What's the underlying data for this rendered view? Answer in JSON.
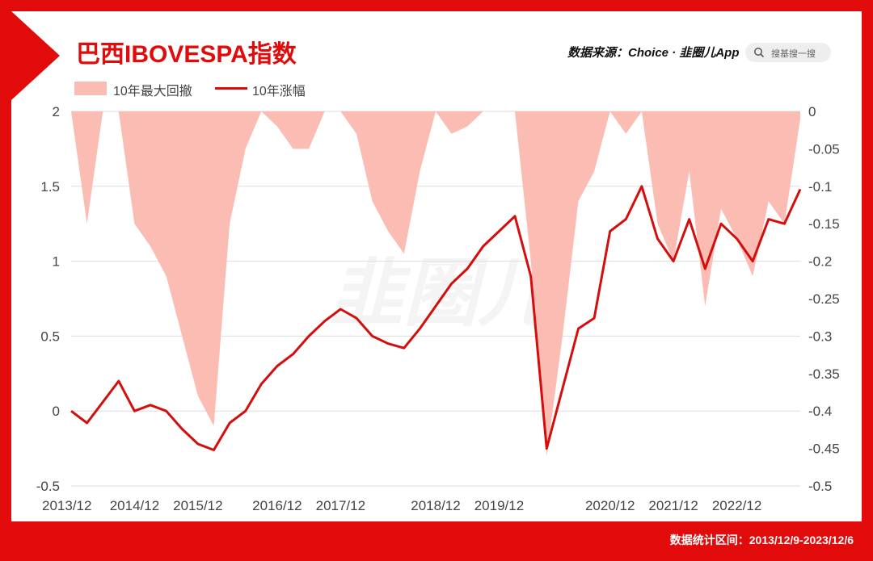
{
  "header": {
    "title": "巴西IBOVESPA指数",
    "source": "数据来源：Choice · 韭圈儿App",
    "search_placeholder": "搜基搜一搜"
  },
  "footer": {
    "range_text": "数据统计区间：2013/12/9-2023/12/6"
  },
  "watermark": "韭圈儿",
  "colors": {
    "frame": "#e10b0b",
    "drawdown_fill": "#fbbcb4",
    "gain_line": "#d40d0d",
    "grid": "#dddddd"
  },
  "chart_data": {
    "type": "line",
    "title": "巴西IBOVESPA指数",
    "legend_position": "top-left",
    "grid": true,
    "x": [
      "2013/12",
      "2014/03",
      "2014/06",
      "2014/09",
      "2014/12",
      "2015/03",
      "2015/06",
      "2015/09",
      "2015/12",
      "2016/01",
      "2016/03",
      "2016/06",
      "2016/09",
      "2016/12",
      "2017/03",
      "2017/06",
      "2017/09",
      "2017/12",
      "2018/01",
      "2018/03",
      "2018/05",
      "2018/06",
      "2018/09",
      "2018/12",
      "2019/03",
      "2019/06",
      "2019/09",
      "2019/12",
      "2020/01",
      "2020/02",
      "2020/03",
      "2020/04",
      "2020/06",
      "2020/09",
      "2020/12",
      "2021/03",
      "2021/06",
      "2021/09",
      "2021/12",
      "2022/03",
      "2022/06",
      "2022/09",
      "2022/12",
      "2023/03",
      "2023/06",
      "2023/09",
      "2023/12"
    ],
    "x_ticks": [
      "2013/12",
      "2014/12",
      "2015/12",
      "2016/12",
      "2017/12",
      "2018/12",
      "2019/12",
      "2020/12",
      "2021/12",
      "2022/12"
    ],
    "series": [
      {
        "name": "10年涨幅",
        "axis": "left",
        "values": [
          0.0,
          -0.08,
          0.06,
          0.2,
          0.0,
          0.04,
          0.0,
          -0.12,
          -0.22,
          -0.26,
          -0.08,
          0.0,
          0.18,
          0.3,
          0.38,
          0.5,
          0.6,
          0.68,
          0.62,
          0.5,
          0.45,
          0.42,
          0.55,
          0.7,
          0.85,
          0.95,
          1.1,
          1.2,
          1.3,
          0.9,
          -0.25,
          0.15,
          0.55,
          0.62,
          1.2,
          1.28,
          1.5,
          1.15,
          1.0,
          1.28,
          0.95,
          1.25,
          1.15,
          1.0,
          1.28,
          1.25,
          1.48
        ]
      },
      {
        "name": "10年最大回撤",
        "axis": "right",
        "values": [
          0.0,
          -0.15,
          0.0,
          0.0,
          -0.15,
          -0.18,
          -0.22,
          -0.3,
          -0.38,
          -0.42,
          -0.15,
          -0.05,
          0.0,
          -0.02,
          -0.05,
          -0.05,
          0.0,
          0.0,
          -0.03,
          -0.12,
          -0.16,
          -0.19,
          -0.08,
          0.0,
          -0.03,
          -0.02,
          0.0,
          0.0,
          0.0,
          -0.2,
          -0.46,
          -0.3,
          -0.12,
          -0.08,
          0.0,
          -0.03,
          0.0,
          -0.15,
          -0.2,
          -0.08,
          -0.26,
          -0.13,
          -0.17,
          -0.22,
          -0.12,
          -0.15,
          -0.01
        ]
      }
    ],
    "y_left": {
      "ticks": [
        "2",
        "1.5",
        "1",
        "0.5",
        "0",
        "-0.5"
      ],
      "ylim": [
        -0.5,
        2
      ]
    },
    "y_right": {
      "ticks": [
        "0",
        "-0.05",
        "-0.1",
        "-0.15",
        "-0.2",
        "-0.25",
        "-0.3",
        "-0.35",
        "-0.4",
        "-0.45",
        "-0.5"
      ],
      "ylim": [
        -0.5,
        0
      ]
    }
  }
}
